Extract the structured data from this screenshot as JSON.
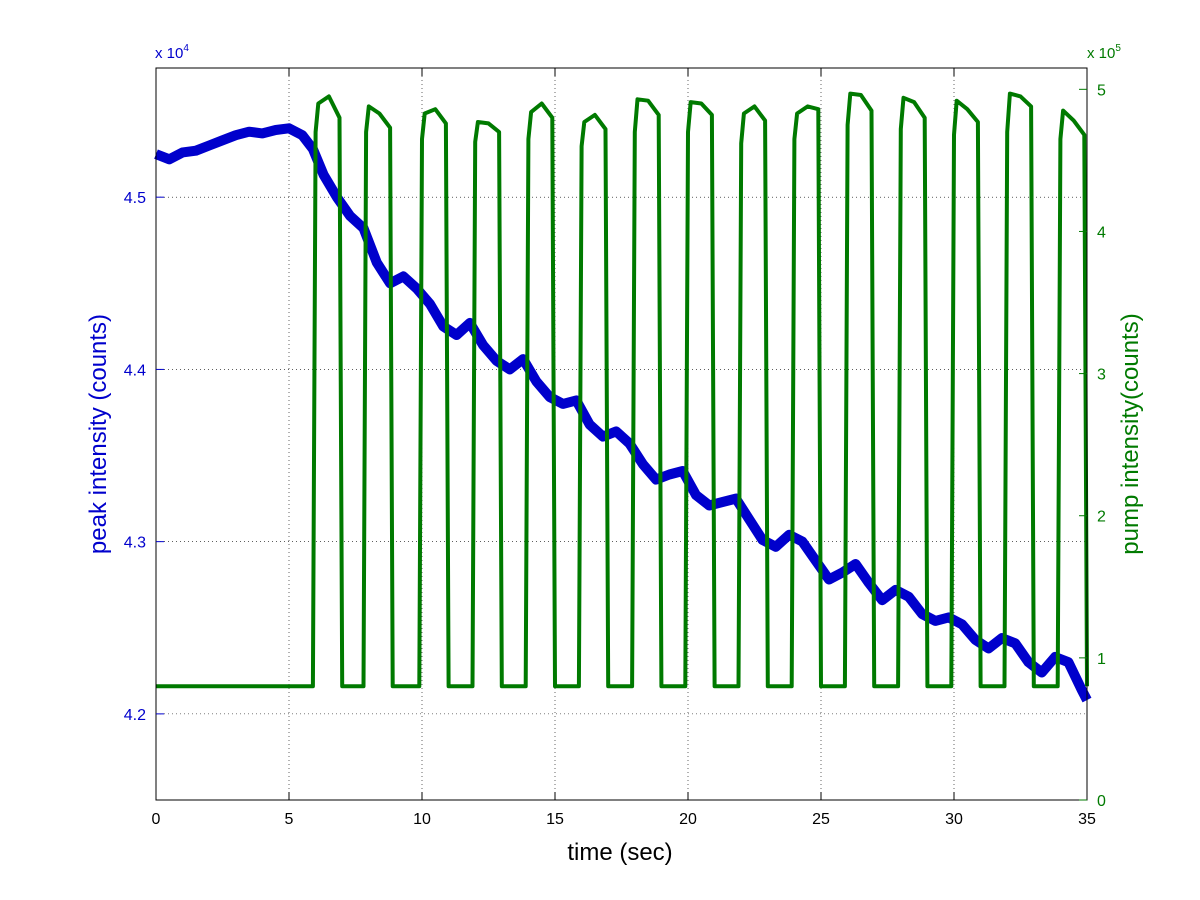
{
  "chart_data": {
    "type": "line",
    "xlabel": "time (sec)",
    "ylabel_left": "peak intensity (counts)",
    "ylabel_right": "pump intensity(counts)",
    "xlim": [
      0,
      35
    ],
    "ylim_left": [
      41500,
      45750
    ],
    "ylim_right": [
      0,
      515000
    ],
    "x_ticks": [
      "0",
      "5",
      "10",
      "15",
      "20",
      "25",
      "30",
      "35"
    ],
    "y_left_ticks": [
      "4.2",
      "4.3",
      "4.4",
      "4.5"
    ],
    "y_right_ticks": [
      "0",
      "1",
      "2",
      "3",
      "4",
      "5"
    ],
    "left_exponent": {
      "base": "x 10",
      "power": "4"
    },
    "right_exponent": {
      "base": "x 10",
      "power": "5"
    },
    "grid": true,
    "colors": {
      "left": "#0000cc",
      "right": "#007a00",
      "axis": "#000000"
    },
    "series": [
      {
        "axis": "left",
        "x": [
          0,
          0.5,
          1,
          1.5,
          2,
          2.5,
          3,
          3.5,
          4,
          4.5,
          5,
          5.5,
          5.9,
          6.3,
          6.8,
          7.3,
          7.8,
          8.3,
          8.8,
          9.3,
          9.8,
          10.3,
          10.8,
          11.3,
          11.8,
          12.3,
          12.8,
          13.3,
          13.8,
          14.3,
          14.8,
          15.3,
          15.8,
          16.3,
          16.8,
          17.3,
          17.8,
          18.3,
          18.8,
          19.3,
          19.8,
          20.3,
          20.8,
          21.3,
          21.8,
          22.3,
          22.8,
          23.3,
          23.8,
          24.3,
          24.8,
          25.3,
          25.8,
          26.3,
          26.8,
          27.3,
          27.8,
          28.3,
          28.8,
          29.3,
          29.8,
          30.3,
          30.8,
          31.3,
          31.8,
          32.3,
          32.8,
          33.3,
          33.8,
          34.3,
          34.8,
          35
        ],
        "values": [
          45250,
          45220,
          45260,
          45270,
          45300,
          45330,
          45360,
          45380,
          45370,
          45390,
          45400,
          45360,
          45280,
          45130,
          45000,
          44890,
          44820,
          44620,
          44500,
          44540,
          44470,
          44380,
          44250,
          44200,
          44270,
          44140,
          44050,
          44000,
          44060,
          43930,
          43840,
          43800,
          43820,
          43680,
          43610,
          43640,
          43570,
          43450,
          43360,
          43390,
          43410,
          43270,
          43210,
          43230,
          43250,
          43130,
          43010,
          42970,
          43040,
          43000,
          42890,
          42780,
          42820,
          42870,
          42760,
          42660,
          42720,
          42680,
          42580,
          42540,
          42560,
          42520,
          42430,
          42380,
          42440,
          42410,
          42300,
          42240,
          42330,
          42300,
          42140,
          42080
        ]
      },
      {
        "axis": "right",
        "x": [
          0,
          5.9,
          6.0,
          6.1,
          6.5,
          6.9,
          7.0,
          7.8,
          7.9,
          8.0,
          8.4,
          8.8,
          8.9,
          9.9,
          10.0,
          10.1,
          10.5,
          10.9,
          11.0,
          11.9,
          12.0,
          12.1,
          12.5,
          12.9,
          13.0,
          13.9,
          14.0,
          14.1,
          14.5,
          14.9,
          15.0,
          15.9,
          16.0,
          16.1,
          16.5,
          16.9,
          17.0,
          17.9,
          18.0,
          18.1,
          18.5,
          18.9,
          19.0,
          19.9,
          20.0,
          20.1,
          20.5,
          20.9,
          21.0,
          21.9,
          22.0,
          22.1,
          22.5,
          22.9,
          23.0,
          23.9,
          24.0,
          24.1,
          24.5,
          24.9,
          25.0,
          25.9,
          26.0,
          26.1,
          26.5,
          26.9,
          27.0,
          27.9,
          28.0,
          28.1,
          28.5,
          28.9,
          29.0,
          29.9,
          30.0,
          30.1,
          30.5,
          30.9,
          31.0,
          31.9,
          32.0,
          32.1,
          32.5,
          32.9,
          33.0,
          33.9,
          34.0,
          34.1,
          34.5,
          34.9,
          35.0
        ],
        "values": [
          80000,
          80000,
          470000,
          490000,
          495000,
          480000,
          80000,
          80000,
          470000,
          488000,
          483000,
          473000,
          80000,
          80000,
          465000,
          483000,
          486000,
          476000,
          80000,
          80000,
          463000,
          477000,
          476000,
          470000,
          80000,
          80000,
          465000,
          484000,
          490000,
          480000,
          80000,
          80000,
          460000,
          477000,
          482000,
          472000,
          80000,
          80000,
          470000,
          493000,
          492000,
          482000,
          80000,
          80000,
          470000,
          491000,
          490000,
          482000,
          80000,
          80000,
          462000,
          483000,
          488000,
          478000,
          80000,
          80000,
          465000,
          483000,
          488000,
          486000,
          80000,
          80000,
          475000,
          497000,
          496000,
          485000,
          80000,
          80000,
          472000,
          494000,
          491000,
          480000,
          80000,
          80000,
          468000,
          492000,
          486000,
          477000,
          80000,
          80000,
          470000,
          497000,
          495000,
          488000,
          80000,
          80000,
          465000,
          485000,
          478000,
          468000,
          80000
        ]
      }
    ]
  }
}
